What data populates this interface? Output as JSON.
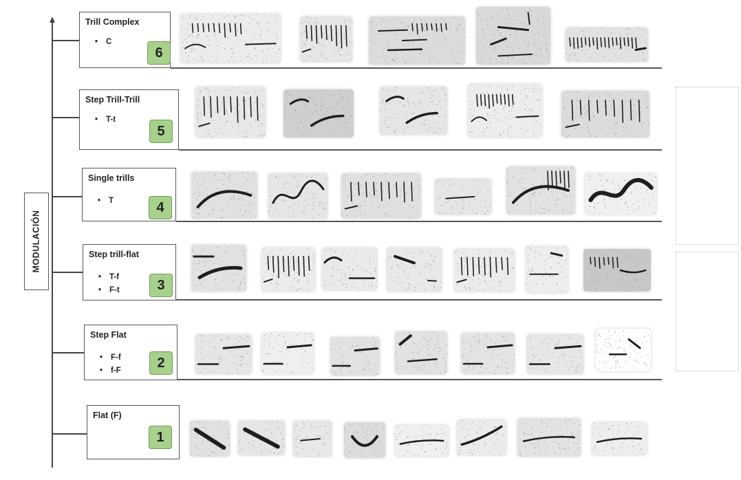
{
  "axis": {
    "label": "MODULACIÓN"
  },
  "categories": [
    {
      "title": "Trill Complex",
      "codes": [
        "C"
      ],
      "rank": "6"
    },
    {
      "title": "Step Trill-Trill",
      "codes": [
        "T-t"
      ],
      "rank": "5"
    },
    {
      "title": "Single trills",
      "codes": [
        "T"
      ],
      "rank": "4"
    },
    {
      "title": "Step trill-flat",
      "codes": [
        "T-f",
        "F-t"
      ],
      "rank": "3"
    },
    {
      "title": "Step Flat",
      "codes": [
        "F-f",
        "f-F"
      ],
      "rank": "2"
    },
    {
      "title": "Flat (F)",
      "codes": [],
      "rank": "1"
    }
  ],
  "bullet_symbol": "•"
}
